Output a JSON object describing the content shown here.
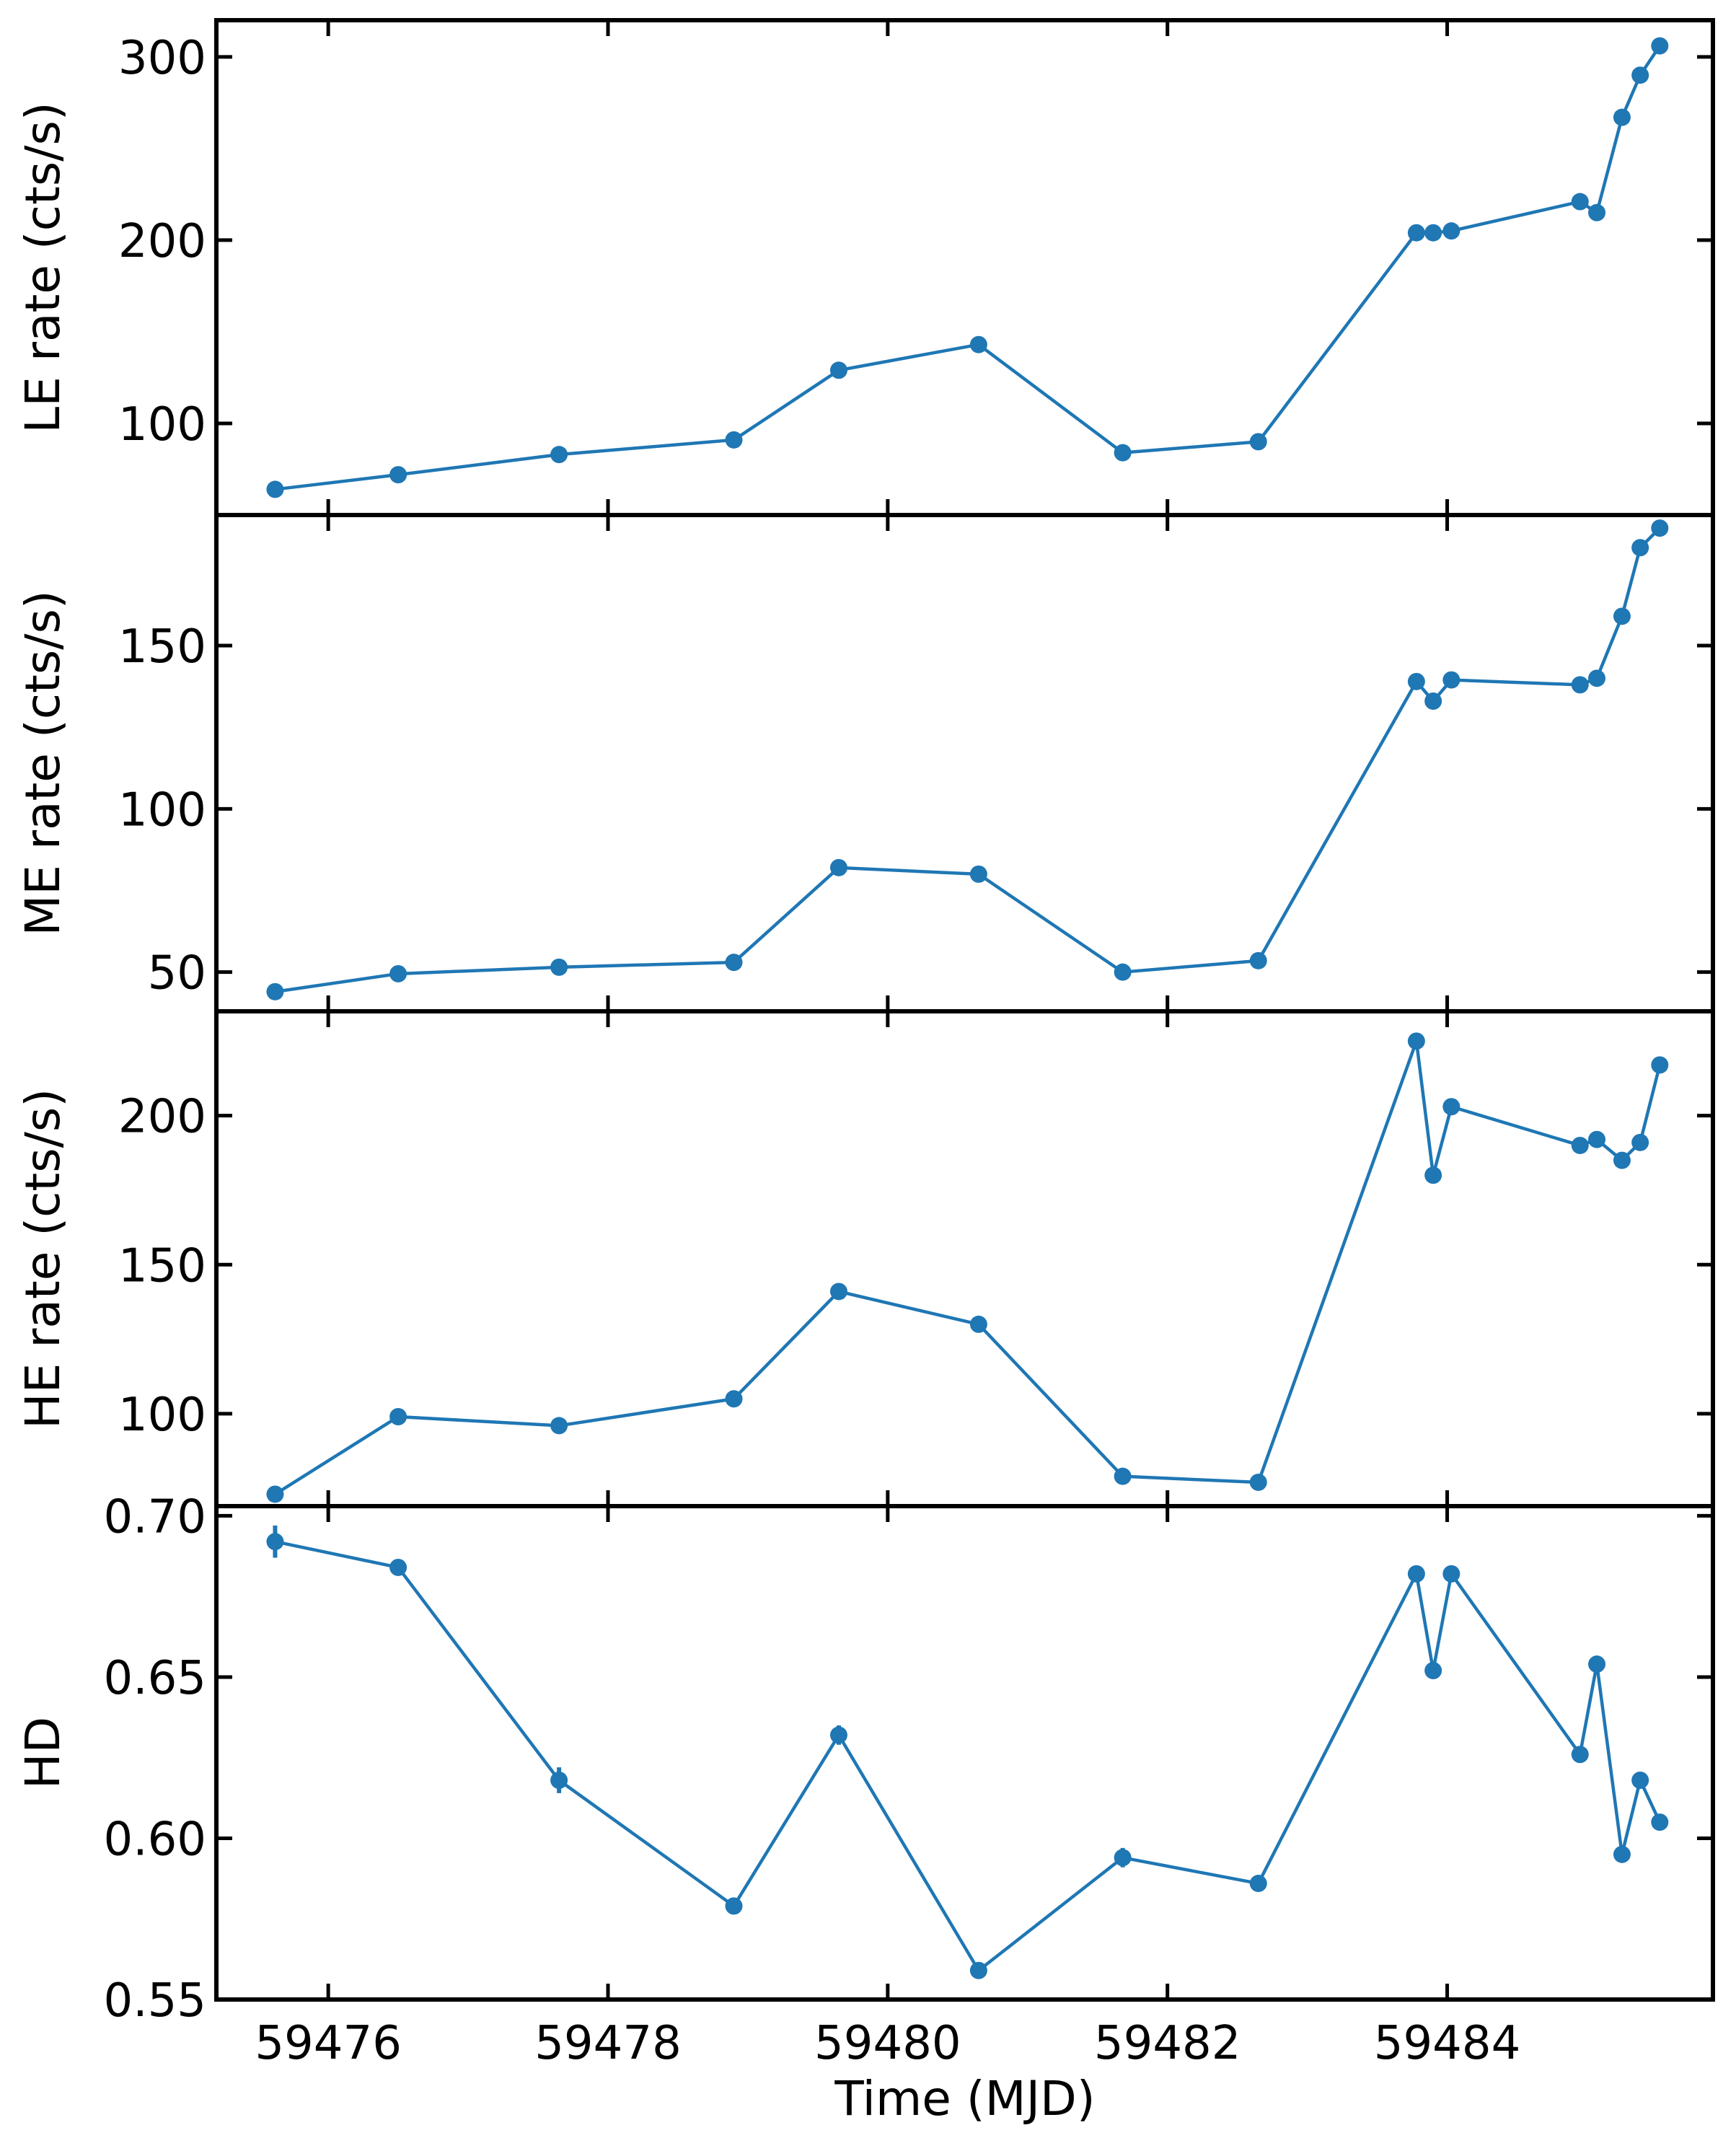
{
  "chart_data": {
    "type": "line",
    "shared_x": true,
    "xlabel": "Time (MJD)",
    "xlim": [
      59475.2,
      59485.9
    ],
    "xticks": [
      59476,
      59478,
      59480,
      59482,
      59484
    ],
    "xtick_labels": [
      "59476",
      "59478",
      "59480",
      "59482",
      "59484"
    ],
    "series_color": "#1f77b4",
    "x": [
      59475.62,
      59476.5,
      59477.65,
      59478.9,
      59479.65,
      59480.65,
      59481.68,
      59482.65,
      59483.78,
      59483.9,
      59484.03,
      59484.95,
      59485.07,
      59485.25,
      59485.38,
      59485.52
    ],
    "panels": [
      {
        "name": "LE",
        "ylabel": "LE rate (cts/s)",
        "ylim": [
          50,
          320
        ],
        "yticks": [
          100,
          200,
          300
        ],
        "ytick_labels": [
          "100",
          "200",
          "300"
        ],
        "values": [
          64,
          72,
          83,
          91,
          129,
          143,
          84,
          90,
          204,
          204,
          205,
          221,
          215,
          267,
          290,
          306
        ],
        "errors": [
          0,
          0,
          0,
          0,
          0,
          0,
          0,
          0,
          0,
          0,
          0,
          0,
          0,
          0,
          0,
          0
        ]
      },
      {
        "name": "ME",
        "ylabel": "ME rate (cts/s)",
        "ylim": [
          38,
          190
        ],
        "yticks": [
          50,
          100,
          150
        ],
        "ytick_labels": [
          "50",
          "100",
          "150"
        ],
        "values": [
          44,
          49.5,
          51.5,
          53,
          82,
          80,
          50,
          53.5,
          139,
          133,
          139.5,
          138,
          140,
          159,
          180,
          186
        ],
        "errors": [
          0,
          0,
          0,
          0,
          0,
          0,
          0,
          0,
          0,
          0,
          0,
          0,
          0,
          0,
          0,
          0
        ]
      },
      {
        "name": "HE",
        "ylabel": "HE rate (cts/s)",
        "ylim": [
          69,
          235
        ],
        "yticks": [
          100,
          150,
          200
        ],
        "ytick_labels": [
          "100",
          "150",
          "200"
        ],
        "values": [
          73,
          99,
          96,
          105,
          141,
          130,
          79,
          77,
          225,
          180,
          203,
          190,
          192,
          185,
          191,
          217
        ],
        "errors": [
          0,
          0,
          0,
          0,
          0,
          0,
          0,
          0,
          0,
          0,
          0,
          0,
          1.5,
          0,
          0,
          0
        ]
      },
      {
        "name": "HD",
        "ylabel": "HD",
        "ylim": [
          0.55,
          0.703
        ],
        "yticks": [
          0.55,
          0.6,
          0.65,
          0.7
        ],
        "ytick_labels": [
          "0.55",
          "0.60",
          "0.65",
          "0.70"
        ],
        "values": [
          0.692,
          0.684,
          0.618,
          0.579,
          0.632,
          0.559,
          0.594,
          0.586,
          0.682,
          0.652,
          0.682,
          0.626,
          0.654,
          0.595,
          0.618,
          0.605
        ],
        "errors": [
          0.005,
          0.0015,
          0.004,
          0.001,
          0.003,
          0.001,
          0.003,
          0.002,
          0.0015,
          0.0015,
          0.0015,
          0.001,
          0.002,
          0.001,
          0.001,
          0.001
        ]
      }
    ]
  }
}
